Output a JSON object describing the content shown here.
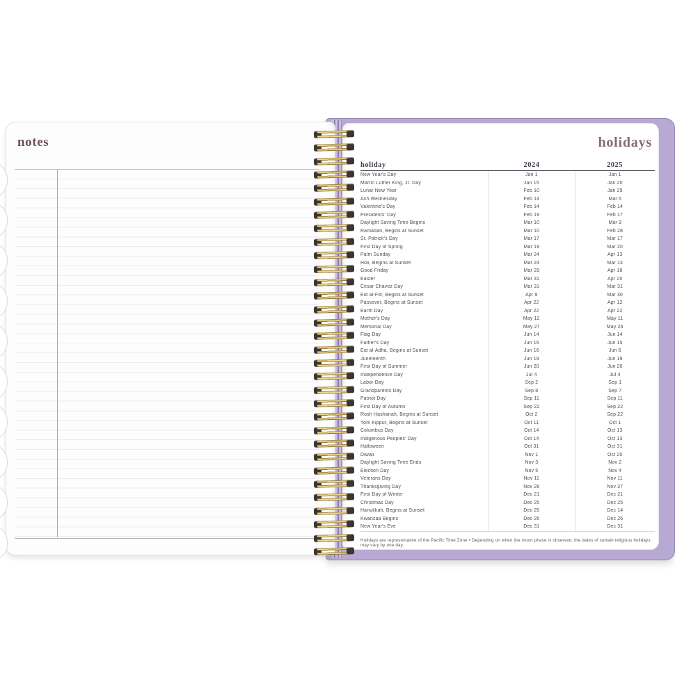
{
  "left_page": {
    "title": "notes"
  },
  "right_page": {
    "title": "holidays",
    "table": {
      "headers": [
        "holiday",
        "2024",
        "2025"
      ],
      "rows": [
        [
          "New Year's Day",
          "Jan 1",
          "Jan 1"
        ],
        [
          "Martin Luther King, Jr. Day",
          "Jan 15",
          "Jan 20"
        ],
        [
          "Lunar New Year",
          "Feb 10",
          "Jan 29"
        ],
        [
          "Ash Wednesday",
          "Feb 14",
          "Mar 5"
        ],
        [
          "Valentine's Day",
          "Feb 14",
          "Feb 14"
        ],
        [
          "Presidents' Day",
          "Feb 19",
          "Feb 17"
        ],
        [
          "Daylight Saving Time Begins",
          "Mar 10",
          "Mar 9"
        ],
        [
          "Ramadan, Begins at Sunset",
          "Mar 10",
          "Feb 28"
        ],
        [
          "St. Patrick's Day",
          "Mar 17",
          "Mar 17"
        ],
        [
          "First Day of Spring",
          "Mar 19",
          "Mar 20"
        ],
        [
          "Palm Sunday",
          "Mar 24",
          "Apr 13"
        ],
        [
          "Holi, Begins at Sunset",
          "Mar 24",
          "Mar 13"
        ],
        [
          "Good Friday",
          "Mar 29",
          "Apr 18"
        ],
        [
          "Easter",
          "Mar 31",
          "Apr 20"
        ],
        [
          "César Chávez Day",
          "Mar 31",
          "Mar 31"
        ],
        [
          "Eid al-Fitr, Begins at Sunset",
          "Apr 9",
          "Mar 30"
        ],
        [
          "Passover, Begins at Sunset",
          "Apr 22",
          "Apr 12"
        ],
        [
          "Earth Day",
          "Apr 22",
          "Apr 22"
        ],
        [
          "Mother's Day",
          "May 12",
          "May 11"
        ],
        [
          "Memorial Day",
          "May 27",
          "May 26"
        ],
        [
          "Flag Day",
          "Jun 14",
          "Jun 14"
        ],
        [
          "Father's Day",
          "Jun 16",
          "Jun 15"
        ],
        [
          "Eid al-Adha, Begins at Sunset",
          "Jun 16",
          "Jun 6"
        ],
        [
          "Juneteenth",
          "Jun 19",
          "Jun 19"
        ],
        [
          "First Day of Summer",
          "Jun 20",
          "Jun 20"
        ],
        [
          "Independence Day",
          "Jul 4",
          "Jul 4"
        ],
        [
          "Labor Day",
          "Sep 2",
          "Sep 1"
        ],
        [
          "Grandparents Day",
          "Sep 8",
          "Sep 7"
        ],
        [
          "Patriot Day",
          "Sep 11",
          "Sep 11"
        ],
        [
          "First Day of Autumn",
          "Sep 22",
          "Sep 22"
        ],
        [
          "Rosh Hashanah, Begins at Sunset",
          "Oct 2",
          "Sep 22"
        ],
        [
          "Yom Kippur, Begins at Sunset",
          "Oct 11",
          "Oct 1"
        ],
        [
          "Columbus Day",
          "Oct 14",
          "Oct 13"
        ],
        [
          "Indigenous Peoples' Day",
          "Oct 14",
          "Oct 13"
        ],
        [
          "Halloween",
          "Oct 31",
          "Oct 31"
        ],
        [
          "Diwali",
          "Nov 1",
          "Oct 20"
        ],
        [
          "Daylight Saving Time Ends",
          "Nov 3",
          "Nov 2"
        ],
        [
          "Election Day",
          "Nov 5",
          "Nov 4"
        ],
        [
          "Veterans Day",
          "Nov 11",
          "Nov 11"
        ],
        [
          "Thanksgiving Day",
          "Nov 28",
          "Nov 27"
        ],
        [
          "First Day of Winter",
          "Dec 21",
          "Dec 21"
        ],
        [
          "Christmas Day",
          "Dec 25",
          "Dec 25"
        ],
        [
          "Hanukkah, Begins at Sunset",
          "Dec 25",
          "Dec 14"
        ],
        [
          "Kwanzaa Begins",
          "Dec 26",
          "Dec 26"
        ],
        [
          "New Year's Eve",
          "Dec 31",
          "Dec 31"
        ]
      ]
    },
    "footnote": "Holidays are representative of the Pacific Time Zone   •   Depending on when the moon phase is observed, the dates of certain religious holidays may vary by one day."
  },
  "decor": {
    "spiral_coil_count": 32,
    "page_curl_count": 10
  },
  "colors": {
    "cover_purple": "#b7a9d3",
    "cover_edge": "#9184b0",
    "title_notes": "#6e4f5f",
    "title_holidays": "#84687c",
    "coil_gold": "#ecd98f",
    "coil_end": "#3c3633",
    "table_text": "#4c4c4e",
    "header_rule": "#4a4250"
  }
}
